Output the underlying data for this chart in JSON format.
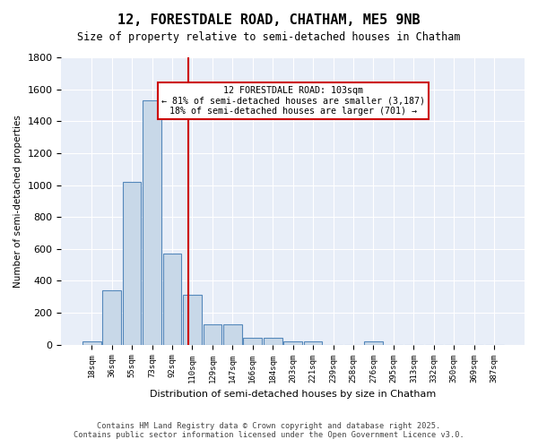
{
  "title": "12, FORESTDALE ROAD, CHATHAM, ME5 9NB",
  "subtitle": "Size of property relative to semi-detached houses in Chatham",
  "xlabel": "Distribution of semi-detached houses by size in Chatham",
  "ylabel": "Number of semi-detached properties",
  "bin_labels": [
    "18sqm",
    "36sqm",
    "55sqm",
    "73sqm",
    "92sqm",
    "110sqm",
    "129sqm",
    "147sqm",
    "166sqm",
    "184sqm",
    "203sqm",
    "221sqm",
    "239sqm",
    "258sqm",
    "276sqm",
    "295sqm",
    "313sqm",
    "332sqm",
    "350sqm",
    "369sqm",
    "387sqm"
  ],
  "bar_values": [
    20,
    340,
    1020,
    1530,
    570,
    310,
    125,
    125,
    45,
    45,
    20,
    20,
    0,
    0,
    20,
    0,
    0,
    0,
    0,
    0,
    0
  ],
  "bar_color": "#c8d8e8",
  "bar_edge_color": "#5588bb",
  "red_line_x": 4.82,
  "annotation_title": "12 FORESTDALE ROAD: 103sqm",
  "annotation_line1": "← 81% of semi-detached houses are smaller (3,187)",
  "annotation_line2": "18% of semi-detached houses are larger (701) →",
  "annotation_box_color": "#ffffff",
  "annotation_box_edge": "#cc0000",
  "red_line_color": "#cc0000",
  "ylim": [
    0,
    1800
  ],
  "yticks": [
    0,
    200,
    400,
    600,
    800,
    1000,
    1200,
    1400,
    1600,
    1800
  ],
  "bg_color": "#e8eef8",
  "footer1": "Contains HM Land Registry data © Crown copyright and database right 2025.",
  "footer2": "Contains public sector information licensed under the Open Government Licence v3.0."
}
